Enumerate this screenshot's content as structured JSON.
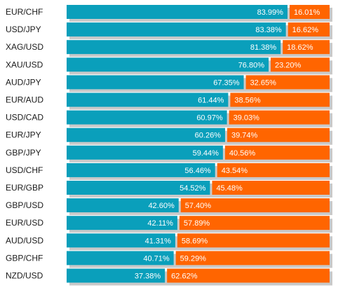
{
  "chart_data": {
    "type": "bar",
    "stacked": true,
    "orientation": "horizontal",
    "value_format": "{v}%",
    "xlim": [
      0,
      100
    ],
    "grid": false,
    "categories": [
      "EUR/CHF",
      "USD/JPY",
      "XAG/USD",
      "XAU/USD",
      "AUD/JPY",
      "EUR/AUD",
      "USD/CAD",
      "EUR/JPY",
      "GBP/JPY",
      "USD/CHF",
      "EUR/GBP",
      "GBP/USD",
      "EUR/USD",
      "AUD/USD",
      "GBP/CHF",
      "NZD/USD"
    ],
    "series": [
      {
        "color": "#0a9fbb",
        "values": [
          83.99,
          83.38,
          81.38,
          76.8,
          67.35,
          61.44,
          60.97,
          60.26,
          59.44,
          56.46,
          54.52,
          42.6,
          42.11,
          41.31,
          40.71,
          37.38
        ],
        "labels": [
          "83.99%",
          "83.38%",
          "81.38%",
          "76.80%",
          "67.35%",
          "61.44%",
          "60.97%",
          "60.26%",
          "59.44%",
          "56.46%",
          "54.52%",
          "42.60%",
          "42.11%",
          "41.31%",
          "40.71%",
          "37.38%"
        ]
      },
      {
        "color": "#ff6500",
        "values": [
          16.01,
          16.62,
          18.62,
          23.2,
          32.65,
          38.56,
          39.03,
          39.74,
          40.56,
          43.54,
          45.48,
          57.4,
          57.89,
          58.69,
          59.29,
          62.62
        ],
        "labels": [
          "16.01%",
          "16.62%",
          "18.62%",
          "23.20%",
          "32.65%",
          "38.56%",
          "39.03%",
          "39.74%",
          "40.56%",
          "43.54%",
          "45.48%",
          "57.40%",
          "57.89%",
          "58.69%",
          "59.29%",
          "62.62%"
        ]
      }
    ]
  }
}
